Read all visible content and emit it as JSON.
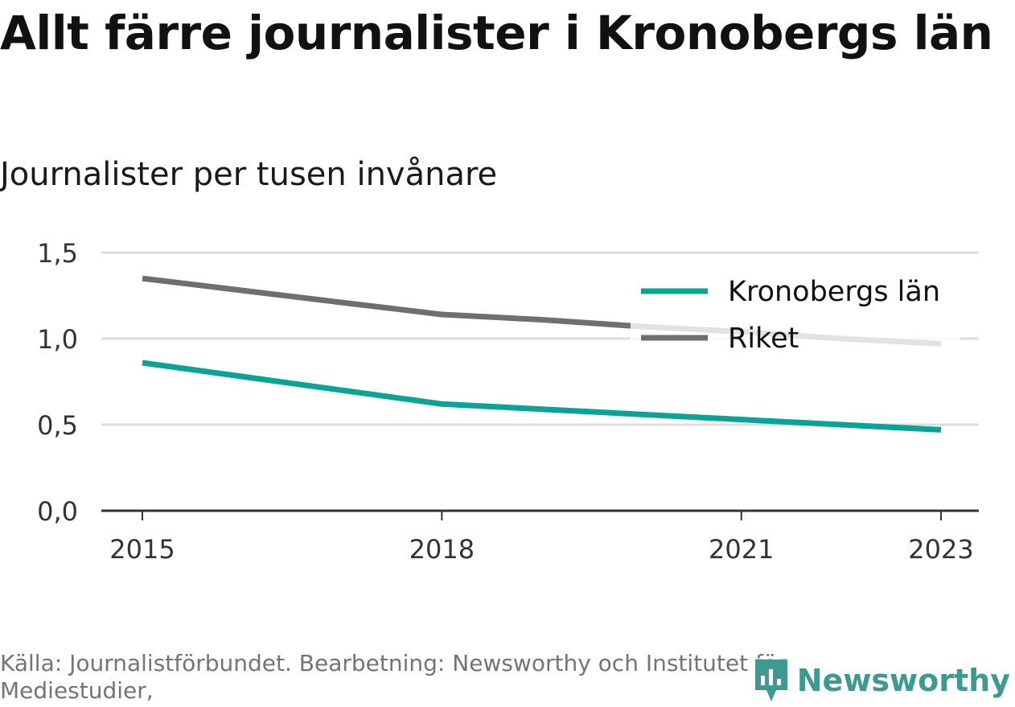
{
  "title": "Allt färre journalister i Kronobergs län",
  "subtitle": "Journalister per tusen invånare",
  "source": "Källa: Journalistförbundet. Bearbetning: Newsworthy och Institutet för Mediestudier,",
  "brand": {
    "name": "Newsworthy",
    "icon": "newsworthy-logo-icon",
    "color": "#3d9a91"
  },
  "colors": {
    "kronoberg": "#0aa496",
    "riket": "#6e6e73",
    "grid": "#dddddd",
    "axis": "#333333",
    "tick_text": "#333333"
  },
  "chart_data": {
    "type": "line",
    "x": [
      2015,
      2016,
      2017,
      2018,
      2019,
      2020,
      2021,
      2022,
      2023
    ],
    "x_ticks": [
      "2015",
      "2018",
      "2021",
      "2023"
    ],
    "y_ticks": [
      "0,0",
      "0,5",
      "1,0",
      "1,5"
    ],
    "ylim": [
      0,
      1.5
    ],
    "grid": true,
    "legend_position": "top-right",
    "series": [
      {
        "name": "Kronobergs län",
        "color": "#0aa496",
        "values": [
          0.86,
          0.78,
          0.7,
          0.62,
          0.59,
          0.56,
          0.53,
          0.5,
          0.47
        ]
      },
      {
        "name": "Riket",
        "color": "#6e6e73",
        "values": [
          1.35,
          1.28,
          1.21,
          1.14,
          1.11,
          1.07,
          1.04,
          1.0,
          0.97
        ]
      }
    ]
  }
}
